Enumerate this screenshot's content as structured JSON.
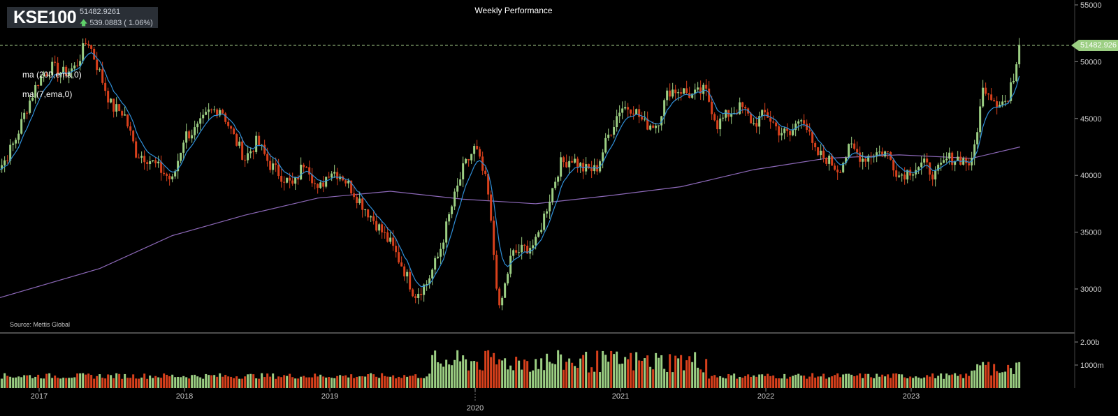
{
  "header": {
    "symbol": "KSE100",
    "price": "51482.9261",
    "change": "539.0883 ( 1.06%)",
    "title": "Weekly Performance"
  },
  "indicators": [
    "ma (200,ema,0)",
    "ma (7,ema,0)"
  ],
  "source": "Source: Mettis Global",
  "last_price_label": "51482.926",
  "colors": {
    "up": "#9ccf83",
    "down": "#d8401c",
    "ma7": "#2f8fd8",
    "ma200": "#8c68b8",
    "background": "#000000",
    "grid_dashed": "#a8d08d"
  },
  "chart_data": [
    {
      "type": "candlestick",
      "title": "Weekly Performance",
      "x_ticks": [
        "2017",
        "2018",
        "2019",
        "2020",
        "2021",
        "2022",
        "2023"
      ],
      "y_ticks": [
        "30000",
        "35000",
        "40000",
        "45000",
        "50000",
        "55000"
      ],
      "ylim": [
        26000,
        55000
      ],
      "series": [
        {
          "name": "ma (200,ema,0)"
        },
        {
          "name": "ma (7,ema,0)"
        }
      ],
      "close_path": [
        [
          "2016-09",
          40500
        ],
        [
          "2016-10",
          41000
        ],
        [
          "2016-11",
          43000
        ],
        [
          "2016-12",
          46000
        ],
        [
          "2017-01",
          48500
        ],
        [
          "2017-02",
          49500
        ],
        [
          "2017-03",
          49000
        ],
        [
          "2017-04",
          49500
        ],
        [
          "2017-05",
          52000
        ],
        [
          "2017-06",
          49000
        ],
        [
          "2017-07",
          46000
        ],
        [
          "2017-08",
          45500
        ],
        [
          "2017-09",
          42000
        ],
        [
          "2017-10",
          41500
        ],
        [
          "2017-11",
          40500
        ],
        [
          "2017-12",
          39500
        ],
        [
          "2018-01",
          43500
        ],
        [
          "2018-02",
          44000
        ],
        [
          "2018-03",
          45500
        ],
        [
          "2018-04",
          46000
        ],
        [
          "2018-05",
          43500
        ],
        [
          "2018-06",
          41500
        ],
        [
          "2018-07",
          43000
        ],
        [
          "2018-08",
          41000
        ],
        [
          "2018-09",
          40000
        ],
        [
          "2018-10",
          39000
        ],
        [
          "2018-11",
          41500
        ],
        [
          "2018-12",
          38500
        ],
        [
          "2019-01",
          40500
        ],
        [
          "2019-02",
          40000
        ],
        [
          "2019-03",
          38500
        ],
        [
          "2019-04",
          37000
        ],
        [
          "2019-05",
          35500
        ],
        [
          "2019-06",
          34000
        ],
        [
          "2019-07",
          32000
        ],
        [
          "2019-08",
          29500
        ],
        [
          "2019-09",
          30500
        ],
        [
          "2019-10",
          33000
        ],
        [
          "2019-11",
          37000
        ],
        [
          "2019-12",
          40500
        ],
        [
          "2020-01",
          42500
        ],
        [
          "2020-02",
          39000
        ],
        [
          "2020-03",
          28000
        ],
        [
          "2020-04",
          33000
        ],
        [
          "2020-05",
          33500
        ],
        [
          "2020-06",
          34000
        ],
        [
          "2020-07",
          37500
        ],
        [
          "2020-08",
          41000
        ],
        [
          "2020-09",
          41500
        ],
        [
          "2020-10",
          40500
        ],
        [
          "2020-11",
          40500
        ],
        [
          "2020-12",
          43500
        ],
        [
          "2021-01",
          46000
        ],
        [
          "2021-02",
          46000
        ],
        [
          "2021-03",
          44500
        ],
        [
          "2021-04",
          44500
        ],
        [
          "2021-05",
          47500
        ],
        [
          "2021-06",
          47500
        ],
        [
          "2021-07",
          47000
        ],
        [
          "2021-08",
          47500
        ],
        [
          "2021-09",
          44500
        ],
        [
          "2021-10",
          45500
        ],
        [
          "2021-11",
          46000
        ],
        [
          "2021-12",
          44500
        ],
        [
          "2022-01",
          45500
        ],
        [
          "2022-02",
          44000
        ],
        [
          "2022-03",
          43500
        ],
        [
          "2022-04",
          45500
        ],
        [
          "2022-05",
          42000
        ],
        [
          "2022-06",
          41500
        ],
        [
          "2022-07",
          40500
        ],
        [
          "2022-08",
          42500
        ],
        [
          "2022-09",
          41500
        ],
        [
          "2022-10",
          42000
        ],
        [
          "2022-11",
          42000
        ],
        [
          "2022-12",
          40000
        ],
        [
          "2023-01",
          40500
        ],
        [
          "2023-02",
          41000
        ],
        [
          "2023-03",
          40000
        ],
        [
          "2023-04",
          41500
        ],
        [
          "2023-05",
          41500
        ],
        [
          "2023-06",
          41000
        ],
        [
          "2023-07",
          48000
        ],
        [
          "2023-08",
          46500
        ],
        [
          "2023-09",
          46500
        ],
        [
          "2023-10",
          51483
        ]
      ],
      "ma200_path": [
        [
          "2016-09",
          29000
        ],
        [
          "2017-06",
          31800
        ],
        [
          "2017-12",
          34700
        ],
        [
          "2018-06",
          36500
        ],
        [
          "2018-12",
          38000
        ],
        [
          "2019-06",
          38600
        ],
        [
          "2019-12",
          37900
        ],
        [
          "2020-06",
          37500
        ],
        [
          "2020-12",
          38200
        ],
        [
          "2021-06",
          39000
        ],
        [
          "2021-12",
          40500
        ],
        [
          "2022-06",
          41500
        ],
        [
          "2022-12",
          41800
        ],
        [
          "2023-06",
          41500
        ],
        [
          "2023-10",
          42500
        ]
      ],
      "last_price": 51482.9261,
      "volume": {
        "y_ticks": [
          "1000m",
          "2.00b"
        ],
        "ylim": [
          0,
          2300
        ]
      }
    }
  ]
}
